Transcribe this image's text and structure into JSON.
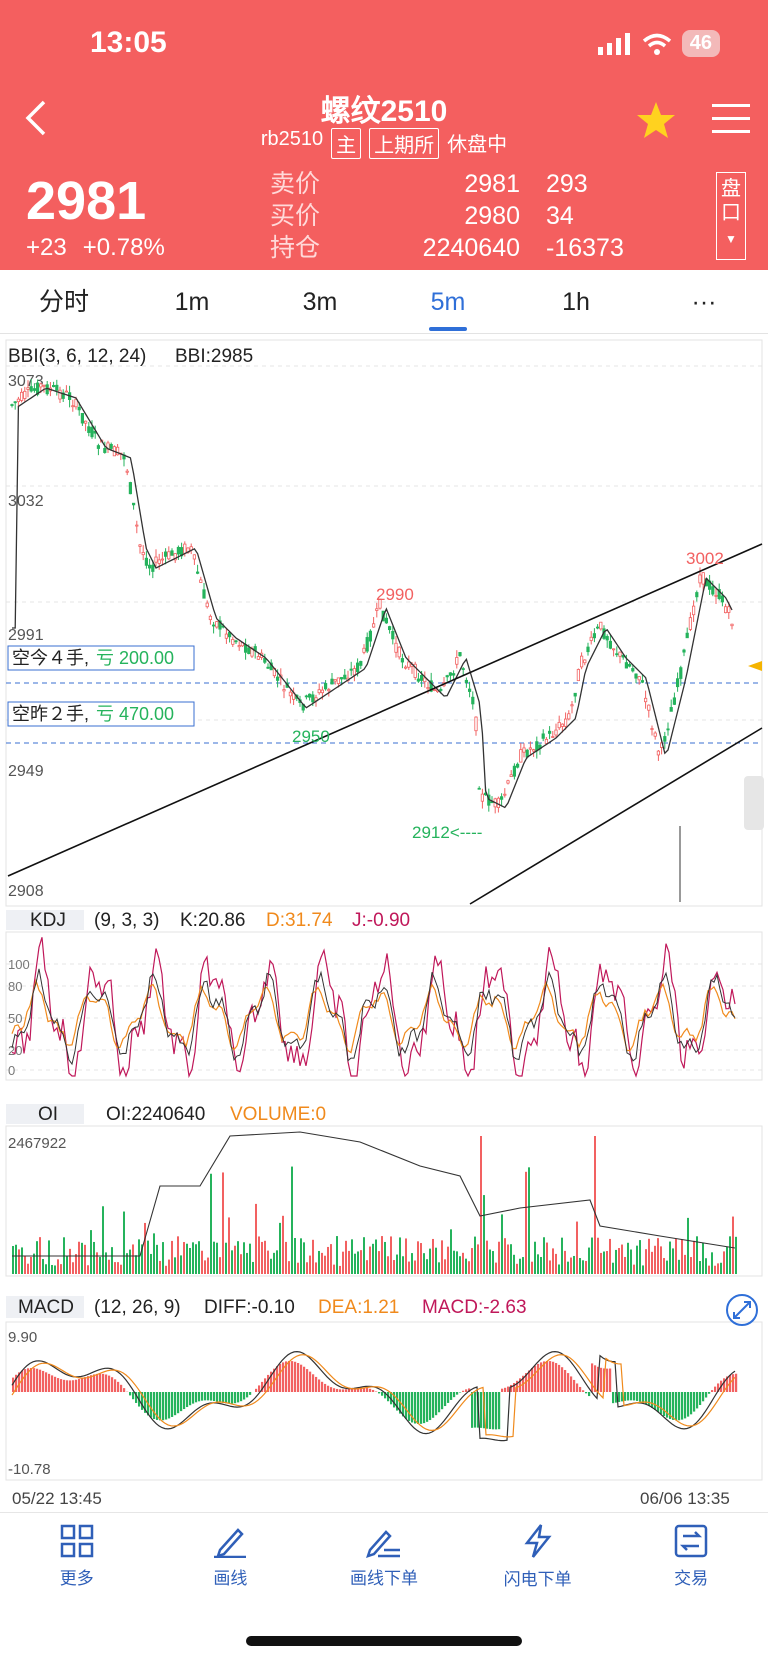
{
  "status": {
    "time": "13:05",
    "battery": "46"
  },
  "header": {
    "title": "螺纹2510",
    "code": "rb2510",
    "main_tag": "主",
    "exchange_tag": "上期所",
    "session_status": "休盘中",
    "price": "2981",
    "change": "+23",
    "change_pct": "+0.78%",
    "quotes": [
      {
        "label": "卖价",
        "value": "2981",
        "volume": "293"
      },
      {
        "label": "买价",
        "value": "2980",
        "volume": "34"
      },
      {
        "label": "持仓",
        "value": "2240640",
        "volume": "-16373"
      }
    ],
    "pankou": "盘口"
  },
  "tabs": [
    "分时",
    "1m",
    "3m",
    "5m",
    "1h",
    "···"
  ],
  "active_tab": "5m",
  "indicators": {
    "bbi_title": "BBI(3, 6, 12, 24)",
    "bbi_value": "BBI:2985",
    "kdj_name": "KDJ",
    "kdj_params": "(9, 3, 3)",
    "kdj_k": "K:20.86",
    "kdj_d": "D:31.74",
    "kdj_j": "J:-0.90",
    "oi_name": "OI",
    "oi_value": "OI:2240640",
    "volume_value": "VOLUME:0",
    "oi_axis_top": "2467922",
    "macd_name": "MACD",
    "macd_params": "(12, 26, 9)",
    "macd_diff": "DIFF:-0.10",
    "macd_dea": "DEA:1.21",
    "macd_value": "MACD:-2.63",
    "macd_top": "9.90",
    "macd_bottom": "-10.78"
  },
  "price_axis": [
    "3073",
    "3032",
    "2991",
    "2949",
    "2908"
  ],
  "annotations": {
    "high_right": "3002",
    "high_mid": "2990",
    "low_left": "2950",
    "low_mark": "2912<----"
  },
  "positions": [
    {
      "label": "空今４手,",
      "pnl": "亏 200.00"
    },
    {
      "label": "空昨２手,",
      "pnl": "亏 470.00"
    }
  ],
  "time_axis": {
    "start": "05/22 13:45",
    "end": "06/06 13:35"
  },
  "footer": [
    {
      "label": "更多",
      "icon": "grid-icon"
    },
    {
      "label": "画线",
      "icon": "pen-icon"
    },
    {
      "label": "画线下单",
      "icon": "pen-order-icon"
    },
    {
      "label": "闪电下单",
      "icon": "lightning-icon"
    },
    {
      "label": "交易",
      "icon": "trade-icon"
    }
  ],
  "colors": {
    "header": "#f45f5f",
    "up": "#f26161",
    "down": "#25b35c",
    "accent": "#2f6fd8"
  }
}
